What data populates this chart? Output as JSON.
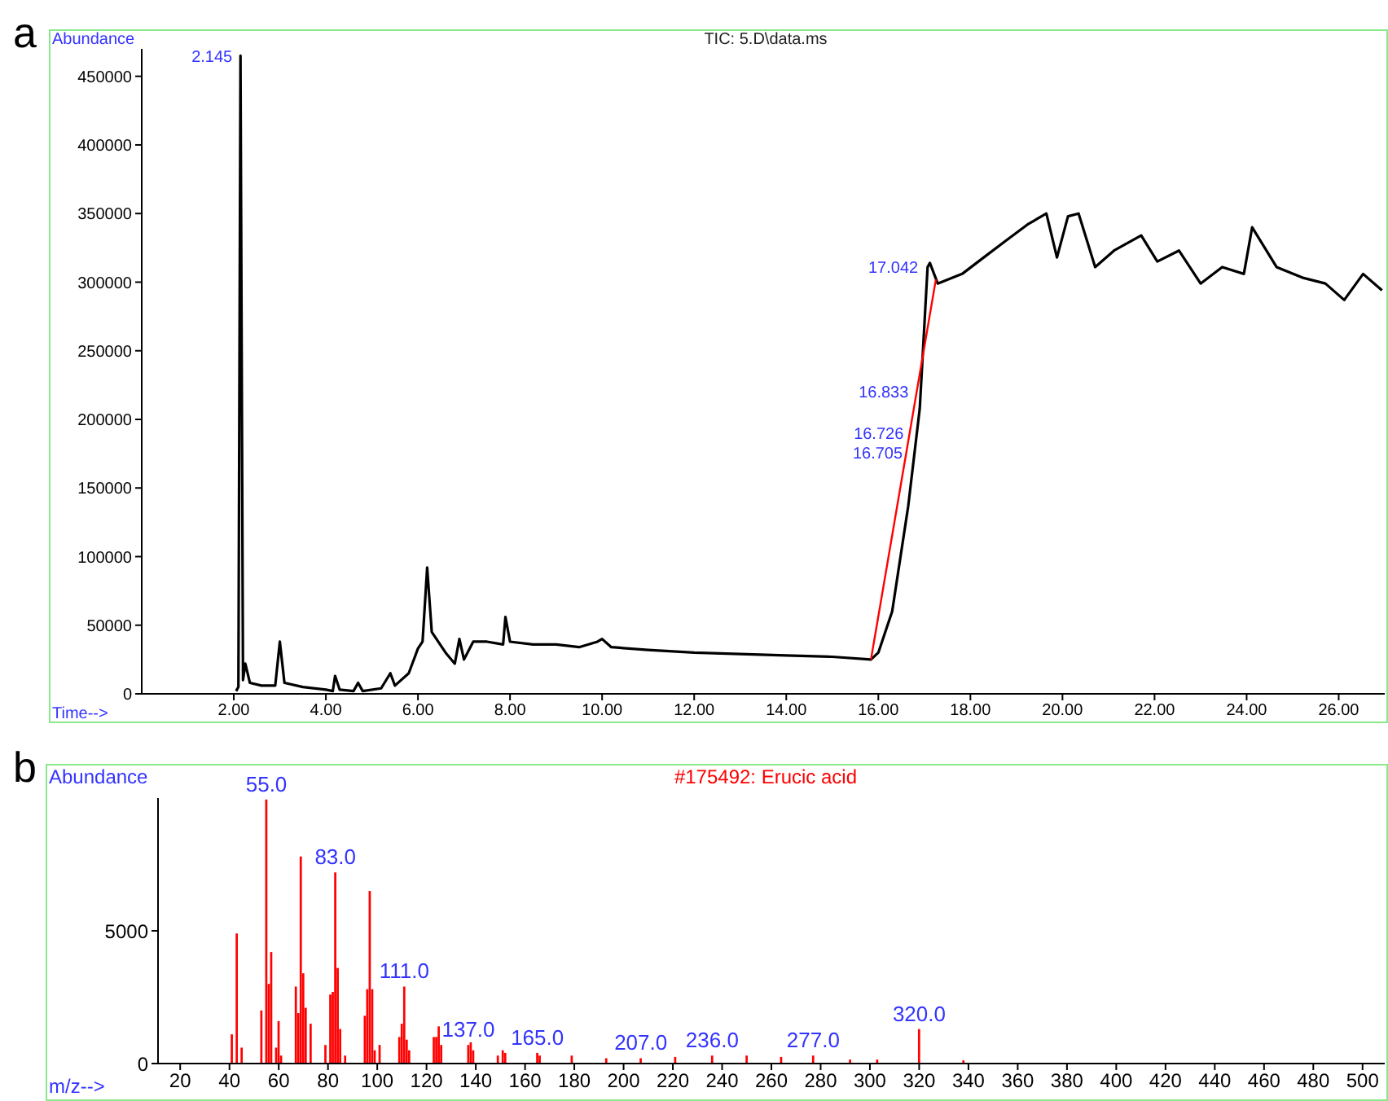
{
  "chart_data": [
    {
      "type": "line",
      "title": "TIC: 5.D\\data.ms",
      "xlabel": "Time-->",
      "ylabel": "Abundance",
      "xlim": [
        0,
        27
      ],
      "ylim": [
        0,
        470000
      ],
      "xticks": [
        {
          "value": 2,
          "label": "2.00"
        },
        {
          "value": 4,
          "label": "4.00"
        },
        {
          "value": 6,
          "label": "6.00"
        },
        {
          "value": 8,
          "label": "8.00"
        },
        {
          "value": 10,
          "label": "10.00"
        },
        {
          "value": 12,
          "label": "12.00"
        },
        {
          "value": 14,
          "label": "14.00"
        },
        {
          "value": 16,
          "label": "16.00"
        },
        {
          "value": 18,
          "label": "18.00"
        },
        {
          "value": 20,
          "label": "20.00"
        },
        {
          "value": 22,
          "label": "22.00"
        },
        {
          "value": 24,
          "label": "24.00"
        },
        {
          "value": 26,
          "label": "26.00"
        }
      ],
      "yticks": [
        0,
        50000,
        100000,
        150000,
        200000,
        250000,
        300000,
        350000,
        400000,
        450000
      ],
      "series": [
        {
          "color": "#000000",
          "x": [
            2.05,
            2.1,
            2.145,
            2.2,
            2.25,
            2.35,
            2.6,
            2.9,
            3.0,
            3.1,
            3.5,
            4.0,
            4.15,
            4.2,
            4.3,
            4.6,
            4.7,
            4.8,
            5.2,
            5.4,
            5.5,
            5.8,
            6.0,
            6.1,
            6.2,
            6.3,
            6.6,
            6.8,
            6.9,
            7.0,
            7.2,
            7.5,
            7.85,
            7.9,
            8.0,
            8.5,
            9.0,
            9.5,
            9.9,
            10.0,
            10.2,
            11.0,
            12.0,
            13.0,
            14.0,
            15.0,
            15.84,
            16.0,
            16.3,
            16.65,
            16.9,
            17.07,
            17.12,
            17.29,
            17.82,
            18.29,
            18.76,
            19.24,
            19.65,
            19.88,
            20.12,
            20.35,
            20.71,
            21.12,
            21.71,
            22.06,
            22.53,
            23.0,
            23.47,
            23.94,
            24.12,
            24.65,
            25.24,
            25.71,
            26.12,
            26.53,
            26.94
          ],
          "values": [
            2000,
            5000,
            465000,
            10000,
            22000,
            8000,
            6000,
            6000,
            38000,
            8000,
            5000,
            3000,
            2000,
            13000,
            3000,
            2000,
            8000,
            2000,
            4000,
            15000,
            6000,
            15000,
            33000,
            38000,
            92000,
            45000,
            30000,
            22000,
            40000,
            25000,
            38000,
            38000,
            36000,
            56000,
            38000,
            36000,
            36000,
            34000,
            38000,
            40000,
            34000,
            32000,
            30000,
            29000,
            28000,
            27000,
            25000,
            30000,
            60000,
            137000,
            208000,
            311000,
            314000,
            299000,
            306000,
            318000,
            330000,
            342000,
            350000,
            318000,
            348000,
            350000,
            311000,
            323000,
            334000,
            315000,
            323000,
            299000,
            311000,
            306000,
            340000,
            311000,
            303000,
            299000,
            287000,
            306000,
            294000
          ]
        },
        {
          "color": "#ff0000",
          "x": [
            15.84,
            17.25
          ],
          "values": [
            25000,
            302000
          ]
        }
      ],
      "annotations": [
        "a",
        {
          "text": "2.145",
          "x": 2.145,
          "y": 465000
        },
        {
          "text": "17.042",
          "x": 17.042,
          "y": 311000
        },
        {
          "text": "16.833",
          "x": 16.833,
          "y": 220000
        },
        {
          "text": "16.726",
          "x": 16.726,
          "y": 190000
        },
        {
          "text": "16.705",
          "x": 16.705,
          "y": 176000
        }
      ]
    },
    {
      "type": "bar",
      "title": "#175492: Erucic acid",
      "xlabel": "m/z-->",
      "ylabel": "Abundance",
      "color": "#ff0000",
      "xlim": [
        11,
        509
      ],
      "ylim": [
        0,
        10000
      ],
      "xticks": [
        20,
        40,
        60,
        80,
        100,
        120,
        140,
        160,
        180,
        200,
        220,
        240,
        260,
        280,
        300,
        320,
        340,
        360,
        380,
        400,
        420,
        440,
        460,
        480,
        500
      ],
      "yticks": [
        0,
        5000
      ],
      "x": [
        41,
        43,
        45,
        53,
        55,
        56,
        57,
        59,
        60,
        61,
        67,
        68,
        69,
        70,
        71,
        73,
        79,
        81,
        82,
        83,
        84,
        85,
        87,
        95,
        96,
        97,
        98,
        99,
        101,
        109,
        110,
        111,
        112,
        113,
        123,
        124,
        125,
        126,
        137,
        138,
        139,
        149,
        151,
        152,
        165,
        166,
        179,
        193,
        207,
        221,
        236,
        250,
        264,
        277,
        292,
        303,
        320,
        338
      ],
      "values": [
        1100,
        4900,
        600,
        2000,
        9950,
        3000,
        4200,
        600,
        1600,
        300,
        2900,
        1900,
        7800,
        3400,
        2100,
        1500,
        700,
        2600,
        2700,
        7200,
        3600,
        1300,
        300,
        1800,
        2800,
        6500,
        2800,
        500,
        700,
        1000,
        1500,
        2900,
        900,
        500,
        1000,
        1000,
        1400,
        700,
        700,
        800,
        500,
        300,
        500,
        400,
        400,
        300,
        300,
        200,
        200,
        250,
        300,
        300,
        250,
        300,
        150,
        150,
        1300,
        120
      ],
      "annotations": [
        "b",
        {
          "text": "55.0",
          "x": 55,
          "y": 9950
        },
        {
          "text": "83.0",
          "x": 83,
          "y": 7200
        },
        {
          "text": "111.0",
          "x": 111,
          "y": 2900
        },
        {
          "text": "137.0",
          "x": 137,
          "y": 700
        },
        {
          "text": "165.0",
          "x": 165,
          "y": 400
        },
        {
          "text": "207.0",
          "x": 207,
          "y": 200
        },
        {
          "text": "236.0",
          "x": 236,
          "y": 300
        },
        {
          "text": "277.0",
          "x": 277,
          "y": 300
        },
        {
          "text": "320.0",
          "x": 320,
          "y": 1300
        }
      ]
    }
  ]
}
